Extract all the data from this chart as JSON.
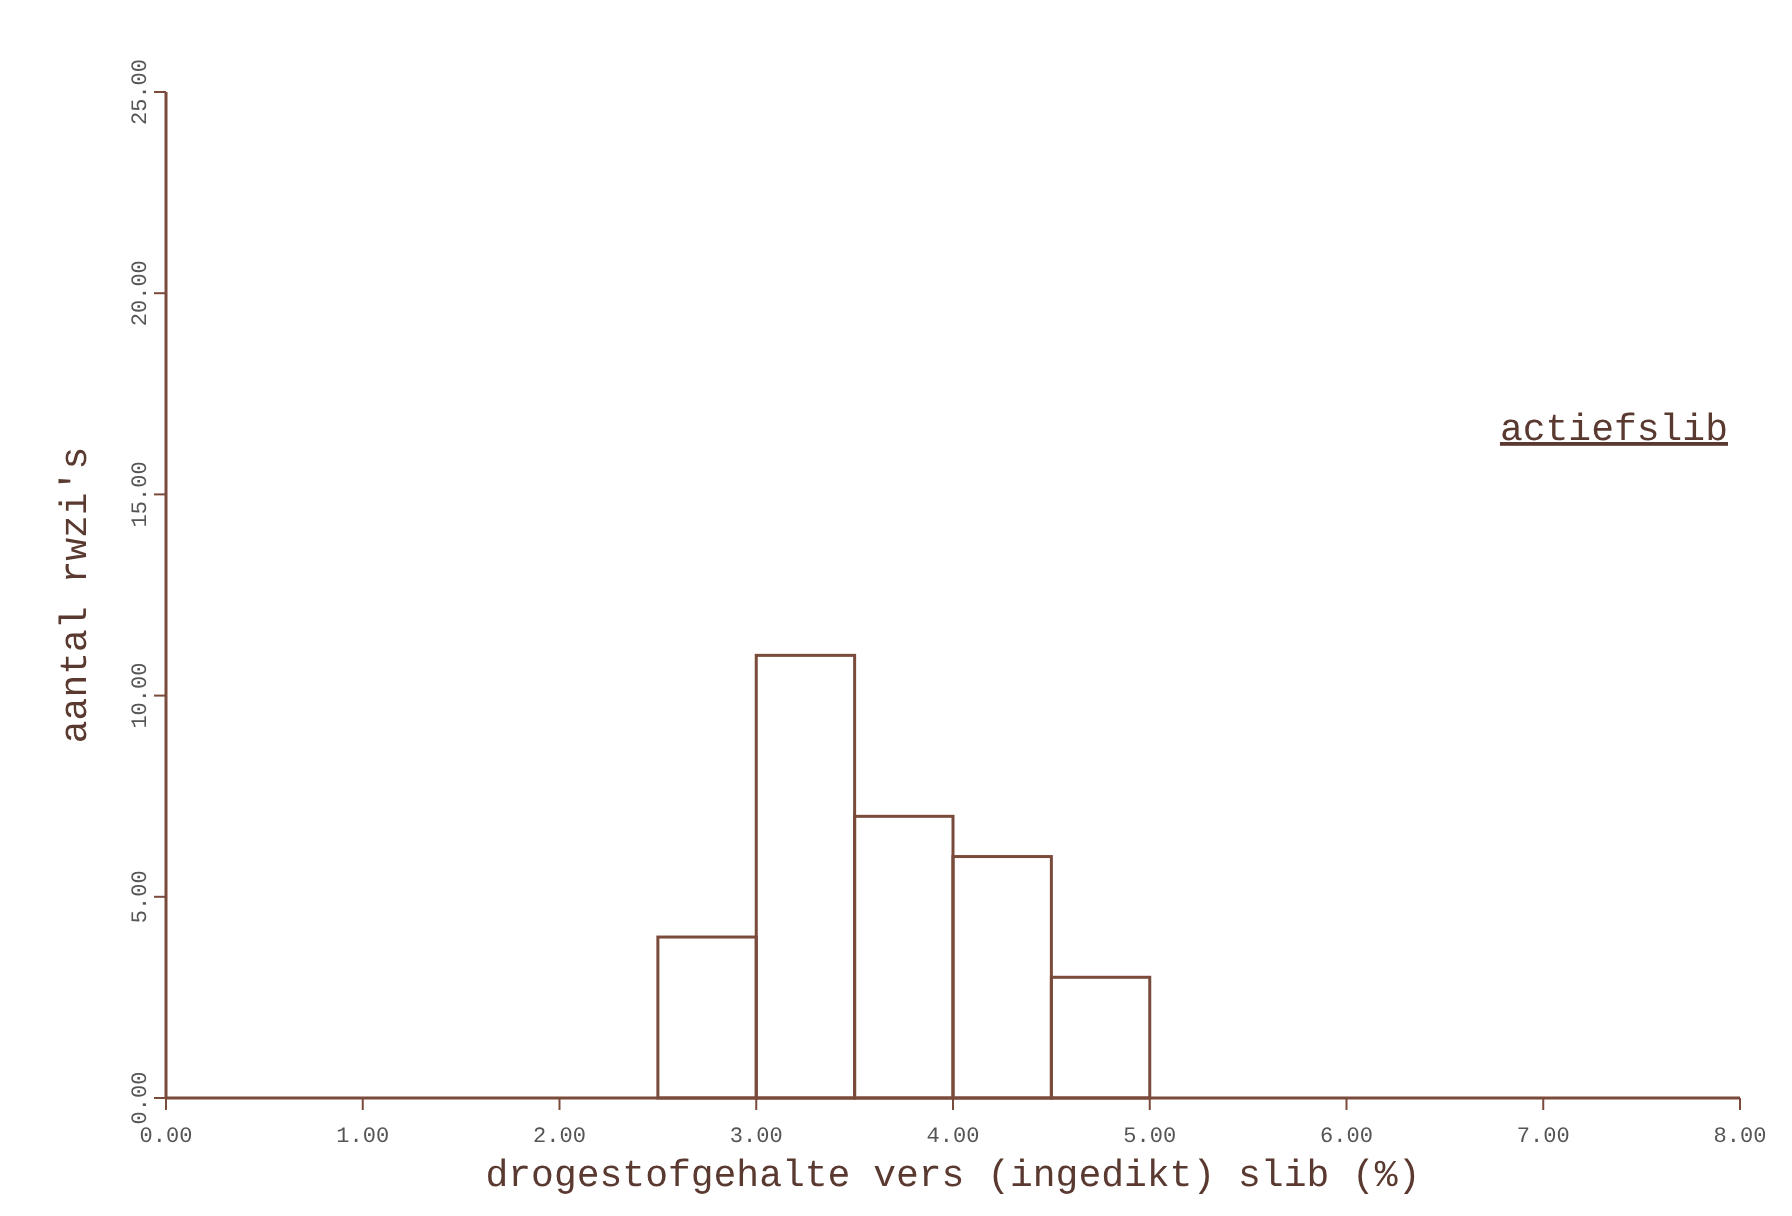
{
  "chart_data": {
    "type": "histogram",
    "title": "actiefslib",
    "xlabel": "drogestofgehalte vers (ingedikt) slib (%)",
    "ylabel": "aantal rwzi's",
    "bins": [
      2.5,
      3.0,
      3.5,
      4.0,
      4.5,
      5.0
    ],
    "values": [
      4,
      11,
      7,
      6,
      3
    ],
    "color": "#7a4a3a",
    "xlim": [
      0,
      8
    ],
    "ylim": [
      0,
      25
    ],
    "xticks": [
      {
        "value": 0,
        "label": "0.00"
      },
      {
        "value": 1,
        "label": "1.00"
      },
      {
        "value": 2,
        "label": "2.00"
      },
      {
        "value": 3,
        "label": "3.00"
      },
      {
        "value": 4,
        "label": "4.00"
      },
      {
        "value": 5,
        "label": "5.00"
      },
      {
        "value": 6,
        "label": "6.00"
      },
      {
        "value": 7,
        "label": "7.00"
      },
      {
        "value": 8,
        "label": "8.00"
      }
    ],
    "yticks": [
      {
        "value": 0,
        "label": "0.00"
      },
      {
        "value": 5,
        "label": "5.00"
      },
      {
        "value": 10,
        "label": "10.00"
      },
      {
        "value": 15,
        "label": "15.00"
      },
      {
        "value": 20,
        "label": "20.00"
      },
      {
        "value": 25,
        "label": "25.00"
      }
    ],
    "grid": false
  }
}
